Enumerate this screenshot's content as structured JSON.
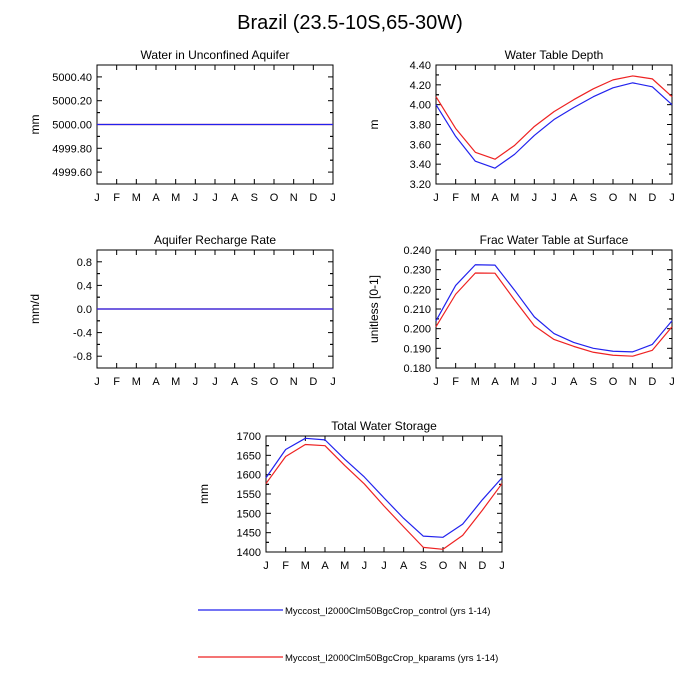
{
  "figure_title": "Brazil (23.5-10S,65-30W)",
  "months": [
    "J",
    "F",
    "M",
    "A",
    "M",
    "J",
    "J",
    "A",
    "S",
    "O",
    "N",
    "D",
    "J"
  ],
  "colors": {
    "control": "#2222ee",
    "kparams": "#ee2222",
    "axis": "#000000"
  },
  "legend": {
    "entries": [
      {
        "key": "control",
        "label": "Myccost_I2000Clm50BgcCrop_control (yrs 1-14)"
      },
      {
        "key": "kparams",
        "label": "Myccost_I2000Clm50BgcCrop_kparams (yrs 1-14)"
      }
    ]
  },
  "chart_data": [
    {
      "id": "water-in-unconfined-aquifer",
      "type": "line",
      "title": "Water in Unconfined Aquifer",
      "xlabel": "",
      "ylabel": "mm",
      "ylim": [
        4999.5,
        5000.5
      ],
      "yticks": [
        4999.6,
        4999.8,
        5000.0,
        5000.2,
        5000.4
      ],
      "ytick_labels": [
        "4999.60",
        "4999.80",
        "5000.00",
        "5000.20",
        "5000.40"
      ],
      "categories": [
        "J",
        "F",
        "M",
        "A",
        "M",
        "J",
        "J",
        "A",
        "S",
        "O",
        "N",
        "D",
        "J"
      ],
      "series": [
        {
          "name": "control",
          "values": [
            5000,
            5000,
            5000,
            5000,
            5000,
            5000,
            5000,
            5000,
            5000,
            5000,
            5000,
            5000,
            5000
          ]
        },
        {
          "name": "kparams",
          "values": [
            5000,
            5000,
            5000,
            5000,
            5000,
            5000,
            5000,
            5000,
            5000,
            5000,
            5000,
            5000,
            5000
          ]
        }
      ]
    },
    {
      "id": "water-table-depth",
      "type": "line",
      "title": "Water Table Depth",
      "xlabel": "",
      "ylabel": "m",
      "ylim": [
        3.2,
        4.4
      ],
      "yticks": [
        3.2,
        3.4,
        3.6,
        3.8,
        4.0,
        4.2,
        4.4
      ],
      "ytick_labels": [
        "3.20",
        "3.40",
        "3.60",
        "3.80",
        "4.00",
        "4.20",
        "4.40"
      ],
      "categories": [
        "J",
        "F",
        "M",
        "A",
        "M",
        "J",
        "J",
        "A",
        "S",
        "O",
        "N",
        "D",
        "J"
      ],
      "series": [
        {
          "name": "control",
          "values": [
            4.0,
            3.68,
            3.43,
            3.36,
            3.5,
            3.69,
            3.85,
            3.97,
            4.08,
            4.17,
            4.22,
            4.18,
            4.0
          ]
        },
        {
          "name": "kparams",
          "values": [
            4.08,
            3.76,
            3.52,
            3.45,
            3.59,
            3.78,
            3.93,
            4.05,
            4.16,
            4.25,
            4.29,
            4.26,
            4.08
          ]
        }
      ]
    },
    {
      "id": "aquifer-recharge-rate",
      "type": "line",
      "title": "Aquifer Recharge Rate",
      "xlabel": "",
      "ylabel": "mm/d",
      "ylim": [
        -1.0,
        1.0
      ],
      "yticks": [
        -0.8,
        -0.4,
        0.0,
        0.4,
        0.8
      ],
      "ytick_labels": [
        "-0.8",
        "-0.4",
        "0.0",
        "0.4",
        "0.8"
      ],
      "categories": [
        "J",
        "F",
        "M",
        "A",
        "M",
        "J",
        "J",
        "A",
        "S",
        "O",
        "N",
        "D",
        "J"
      ],
      "series": [
        {
          "name": "control",
          "values": [
            0,
            0,
            0,
            0,
            0,
            0,
            0,
            0,
            0,
            0,
            0,
            0,
            0
          ]
        },
        {
          "name": "kparams",
          "values": [
            0,
            0,
            0,
            0,
            0,
            0,
            0,
            0,
            0,
            0,
            0,
            0,
            0
          ]
        }
      ]
    },
    {
      "id": "frac-water-table-at-surface",
      "type": "line",
      "title": "Frac Water Table at Surface",
      "xlabel": "",
      "ylabel": "unitless [0-1]",
      "ylim": [
        0.18,
        0.24
      ],
      "yticks": [
        0.18,
        0.19,
        0.2,
        0.21,
        0.22,
        0.23,
        0.24
      ],
      "ytick_labels": [
        "0.180",
        "0.190",
        "0.200",
        "0.210",
        "0.220",
        "0.230",
        "0.240"
      ],
      "categories": [
        "J",
        "F",
        "M",
        "A",
        "M",
        "J",
        "J",
        "A",
        "S",
        "O",
        "N",
        "D",
        "J"
      ],
      "series": [
        {
          "name": "control",
          "values": [
            0.204,
            0.222,
            0.2325,
            0.2323,
            0.2195,
            0.206,
            0.1975,
            0.193,
            0.19,
            0.1885,
            0.1882,
            0.192,
            0.204
          ]
        },
        {
          "name": "kparams",
          "values": [
            0.201,
            0.2175,
            0.2283,
            0.2282,
            0.2145,
            0.2015,
            0.1945,
            0.191,
            0.188,
            0.1865,
            0.186,
            0.189,
            0.201
          ]
        }
      ]
    },
    {
      "id": "total-water-storage",
      "type": "line",
      "title": "Total Water Storage",
      "xlabel": "",
      "ylabel": "mm",
      "ylim": [
        1400,
        1700
      ],
      "yticks": [
        1400,
        1450,
        1500,
        1550,
        1600,
        1650,
        1700
      ],
      "ytick_labels": [
        "1400",
        "1450",
        "1500",
        "1550",
        "1600",
        "1650",
        "1700"
      ],
      "categories": [
        "J",
        "F",
        "M",
        "A",
        "M",
        "J",
        "J",
        "A",
        "S",
        "O",
        "N",
        "D",
        "J"
      ],
      "series": [
        {
          "name": "control",
          "values": [
            1592,
            1665,
            1694,
            1690,
            1640,
            1594,
            1540,
            1487,
            1441,
            1438,
            1472,
            1535,
            1592
          ]
        },
        {
          "name": "kparams",
          "values": [
            1577,
            1647,
            1678,
            1675,
            1624,
            1576,
            1519,
            1465,
            1412,
            1407,
            1443,
            1508,
            1577
          ]
        }
      ]
    }
  ]
}
